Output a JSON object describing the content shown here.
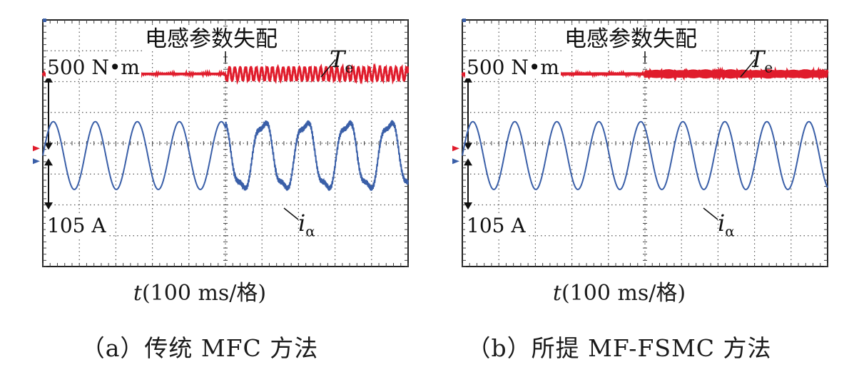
{
  "chart_data": [
    {
      "type": "line",
      "panel_caption": "（a）传统 MFC 方法",
      "annotation": "电感参数失配",
      "xlabel_var": "t",
      "xlabel_unit": "(100 ms/格)",
      "grid": true,
      "divisions": {
        "x": 10,
        "y": 8
      },
      "torque_scale": "500 N•m",
      "current_scale": "105 A",
      "event_division": 5,
      "series": [
        {
          "name": "Te",
          "label_main": "T",
          "label_sub": "e",
          "color": "#e01c2c",
          "level_div": 1.75,
          "ripple_before_div": 0.04,
          "ripple_after_div": 0.22,
          "ripple_cycles_after": 34
        },
        {
          "name": "iα",
          "label_main": "i",
          "label_sub": "α",
          "color": "#3a5fa8",
          "center_div": 4.4,
          "amplitude_div": 1.1,
          "period_div": 1.15,
          "distortion_after": 0.28
        }
      ]
    },
    {
      "type": "line",
      "panel_caption": "（b）所提 MF-FSMC 方法",
      "annotation": "电感参数失配",
      "xlabel_var": "t",
      "xlabel_unit": "(100 ms/格)",
      "grid": true,
      "divisions": {
        "x": 10,
        "y": 8
      },
      "torque_scale": "500 N•m",
      "current_scale": "105 A",
      "event_division": 5,
      "series": [
        {
          "name": "Te",
          "label_main": "T",
          "label_sub": "e",
          "color": "#e01c2c",
          "level_div": 1.75,
          "ripple_before_div": 0.05,
          "ripple_after_div": 0.12,
          "ripple_cycles_after": 120
        },
        {
          "name": "iα",
          "label_main": "i",
          "label_sub": "α",
          "color": "#3a5fa8",
          "center_div": 4.4,
          "amplitude_div": 1.1,
          "period_div": 1.15,
          "distortion_after": 0.0
        }
      ]
    }
  ]
}
